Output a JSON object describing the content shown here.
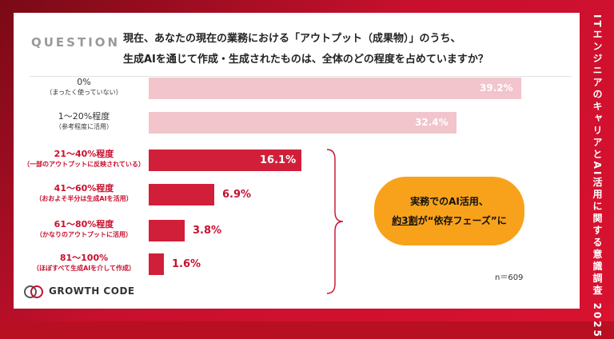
{
  "question_label": "QUESTION",
  "question_text_line1": "現在、あなたの現在の業務における「アウトプット（成果物）」のうち、",
  "question_text_line2": "生成AIを通じて作成・生成されたものは、全体のどの程度を占めていますか？",
  "side_title": "ITエンジニアのキャリアとAI活用に関する意識調査 2025",
  "sample_size": "n＝609",
  "callout": {
    "line1": "実務でのAI活用、",
    "line2_pre": "",
    "line2_em": "約3割",
    "line2_post": "が“依存フェーズ”に"
  },
  "brand": {
    "name": "GROWTH CODE"
  },
  "colors": {
    "highlight": "#d11f3a",
    "muted": "#f2c4cb",
    "callout": "#f8a21b",
    "frame": "#c8102e"
  },
  "chart_data": {
    "type": "bar",
    "orientation": "horizontal",
    "title": "",
    "xlabel": "",
    "ylabel": "",
    "xlim": [
      0,
      39.2
    ],
    "unit": "%",
    "categories": [
      {
        "label": "0%",
        "sublabel": "（まったく使っていない）",
        "highlight": false
      },
      {
        "label": "1〜20%程度",
        "sublabel": "（参考程度に活用）",
        "highlight": false
      },
      {
        "label": "21〜40%程度",
        "sublabel": "（一部のアウトプットに反映されている）",
        "highlight": true
      },
      {
        "label": "41〜60%程度",
        "sublabel": "（おおよそ半分は生成AIを活用）",
        "highlight": true
      },
      {
        "label": "61〜80%程度",
        "sublabel": "（かなりのアウトプットに活用）",
        "highlight": true
      },
      {
        "label": "81〜100%",
        "sublabel": "（ほぼすべて生成AIを介して作成）",
        "highlight": true
      }
    ],
    "values": [
      39.2,
      32.4,
      16.1,
      6.9,
      3.8,
      1.6
    ],
    "value_labels": [
      "39.2%",
      "32.4%",
      "16.1%",
      "6.9%",
      "3.8%",
      "1.6%"
    ]
  }
}
